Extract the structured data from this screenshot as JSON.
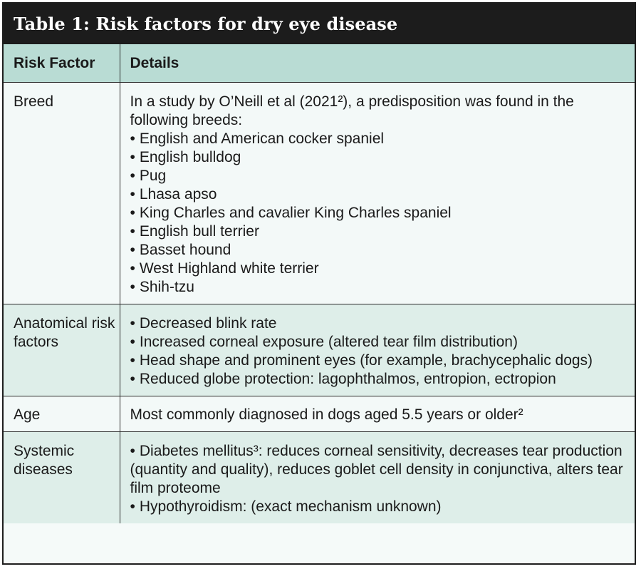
{
  "title": "Table 1: Risk factors for dry eye disease",
  "headers": {
    "factor": "Risk Factor",
    "details": "Details"
  },
  "bullet": "•",
  "rows": [
    {
      "factor": "Breed",
      "intro": "In a study by O’Neill et al (2021²), a predisposition was found in the following breeds:",
      "items": [
        "English and American cocker spaniel",
        "English bulldog",
        "Pug",
        "Lhasa apso",
        "King Charles and cavalier King Charles spaniel",
        "English bull terrier",
        "Basset hound",
        "West Highland white terrier",
        "Shih-tzu"
      ]
    },
    {
      "factor": "Anatomical risk factors",
      "items": [
        "Decreased blink rate",
        "Increased corneal exposure (altered tear film distribution)",
        "Head shape and prominent eyes (for example, brachycephalic dogs)",
        "Reduced globe protection: lagophthalmos, entropion, ectropion"
      ]
    },
    {
      "factor": "Age",
      "text": "Most commonly diagnosed in dogs aged 5.5 years or older²"
    },
    {
      "factor": "Systemic diseases",
      "items": [
        "Diabetes mellitus³: reduces corneal sensitivity, decreases tear production (quantity and quality), reduces goblet cell density in conjunctiva, alters tear film proteome",
        "Hypothyroidism: (exact mechanism unknown)"
      ]
    }
  ]
}
